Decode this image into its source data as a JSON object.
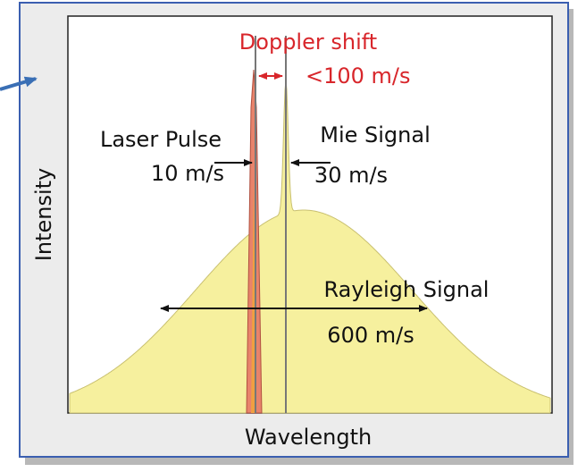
{
  "axes": {
    "y": "Intensity",
    "x": "Wavelength"
  },
  "labels": {
    "doppler": "Doppler shift",
    "doppler_speed": "<100 m/s",
    "laser": "Laser Pulse",
    "laser_speed": "10 m/s",
    "mie": "Mie Signal",
    "mie_speed": "30 m/s",
    "rayleigh": "Rayleigh Signal",
    "rayleigh_speed": "600 m/s"
  }
}
